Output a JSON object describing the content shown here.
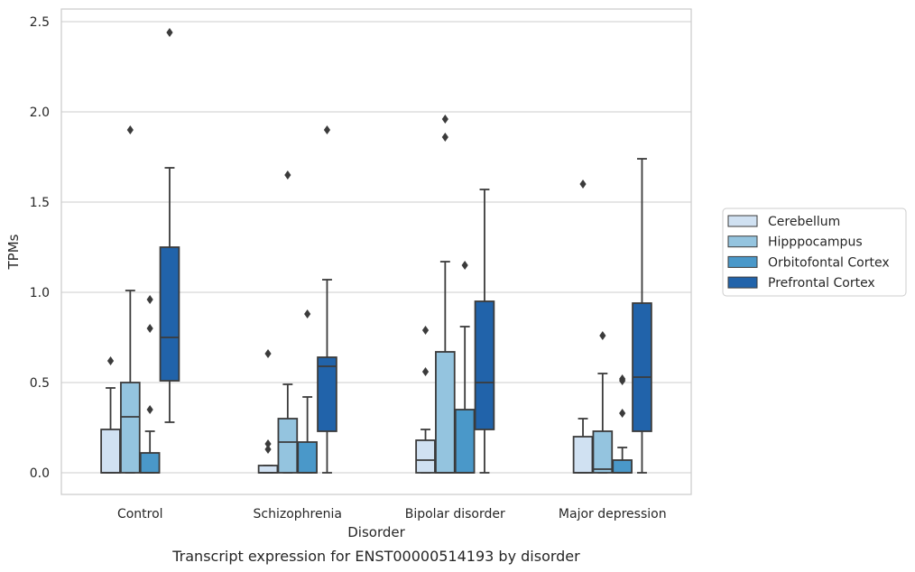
{
  "chart_data": {
    "type": "box",
    "xlabel": "Disorder",
    "ylabel": "TPMs",
    "caption": "Transcript expression for ENST00000514193 by disorder",
    "ylim": [
      -0.12,
      2.57
    ],
    "yticks": [
      "0.0",
      "0.5",
      "1.0",
      "1.5",
      "2.0",
      "2.5"
    ],
    "grid": true,
    "legend_position": "right",
    "categories": [
      "Control",
      "Schizophrenia",
      "Bipolar disorder",
      "Major depression"
    ],
    "series": [
      {
        "name": "Cerebellum",
        "color": "#d0e1f2",
        "boxes": [
          {
            "whisker_low": 0.0,
            "q1": 0.0,
            "median": 0.0,
            "q3": 0.24,
            "whisker_high": 0.47,
            "outliers": [
              0.62
            ]
          },
          {
            "whisker_low": 0.0,
            "q1": 0.0,
            "median": 0.0,
            "q3": 0.04,
            "whisker_high": 0.04,
            "outliers": [
              0.13,
              0.16,
              0.66
            ]
          },
          {
            "whisker_low": 0.0,
            "q1": 0.0,
            "median": 0.07,
            "q3": 0.18,
            "whisker_high": 0.24,
            "outliers": [
              0.56,
              0.79
            ]
          },
          {
            "whisker_low": 0.0,
            "q1": 0.0,
            "median": 0.0,
            "q3": 0.2,
            "whisker_high": 0.3,
            "outliers": [
              1.6
            ]
          }
        ]
      },
      {
        "name": "Hipppocampus",
        "color": "#94c4df",
        "boxes": [
          {
            "whisker_low": 0.0,
            "q1": 0.0,
            "median": 0.31,
            "q3": 0.5,
            "whisker_high": 1.01,
            "outliers": [
              1.9
            ]
          },
          {
            "whisker_low": 0.0,
            "q1": 0.0,
            "median": 0.17,
            "q3": 0.3,
            "whisker_high": 0.49,
            "outliers": [
              1.65
            ]
          },
          {
            "whisker_low": 0.0,
            "q1": 0.0,
            "median": 0.0,
            "q3": 0.67,
            "whisker_high": 1.17,
            "outliers": [
              1.86,
              1.96
            ]
          },
          {
            "whisker_low": 0.0,
            "q1": 0.0,
            "median": 0.02,
            "q3": 0.23,
            "whisker_high": 0.55,
            "outliers": [
              0.76
            ]
          }
        ]
      },
      {
        "name": "Orbitofontal Cortex",
        "color": "#4a98c9",
        "boxes": [
          {
            "whisker_low": 0.0,
            "q1": 0.0,
            "median": 0.0,
            "q3": 0.11,
            "whisker_high": 0.23,
            "outliers": [
              0.35,
              0.8,
              0.96
            ]
          },
          {
            "whisker_low": 0.0,
            "q1": 0.0,
            "median": 0.0,
            "q3": 0.17,
            "whisker_high": 0.42,
            "outliers": [
              0.88
            ]
          },
          {
            "whisker_low": 0.0,
            "q1": 0.0,
            "median": 0.0,
            "q3": 0.35,
            "whisker_high": 0.81,
            "outliers": [
              1.15
            ]
          },
          {
            "whisker_low": 0.0,
            "q1": 0.0,
            "median": 0.0,
            "q3": 0.07,
            "whisker_high": 0.14,
            "outliers": [
              0.33,
              0.51,
              0.52
            ]
          }
        ]
      },
      {
        "name": "Prefrontal Cortex",
        "color": "#2163aa",
        "boxes": [
          {
            "whisker_low": 0.28,
            "q1": 0.51,
            "median": 0.75,
            "q3": 1.25,
            "whisker_high": 1.69,
            "outliers": [
              2.44
            ]
          },
          {
            "whisker_low": 0.0,
            "q1": 0.23,
            "median": 0.59,
            "q3": 0.64,
            "whisker_high": 1.07,
            "outliers": [
              1.9
            ]
          },
          {
            "whisker_low": 0.0,
            "q1": 0.24,
            "median": 0.5,
            "q3": 0.95,
            "whisker_high": 1.57,
            "outliers": []
          },
          {
            "whisker_low": 0.0,
            "q1": 0.23,
            "median": 0.53,
            "q3": 0.94,
            "whisker_high": 1.74,
            "outliers": []
          }
        ]
      }
    ]
  }
}
